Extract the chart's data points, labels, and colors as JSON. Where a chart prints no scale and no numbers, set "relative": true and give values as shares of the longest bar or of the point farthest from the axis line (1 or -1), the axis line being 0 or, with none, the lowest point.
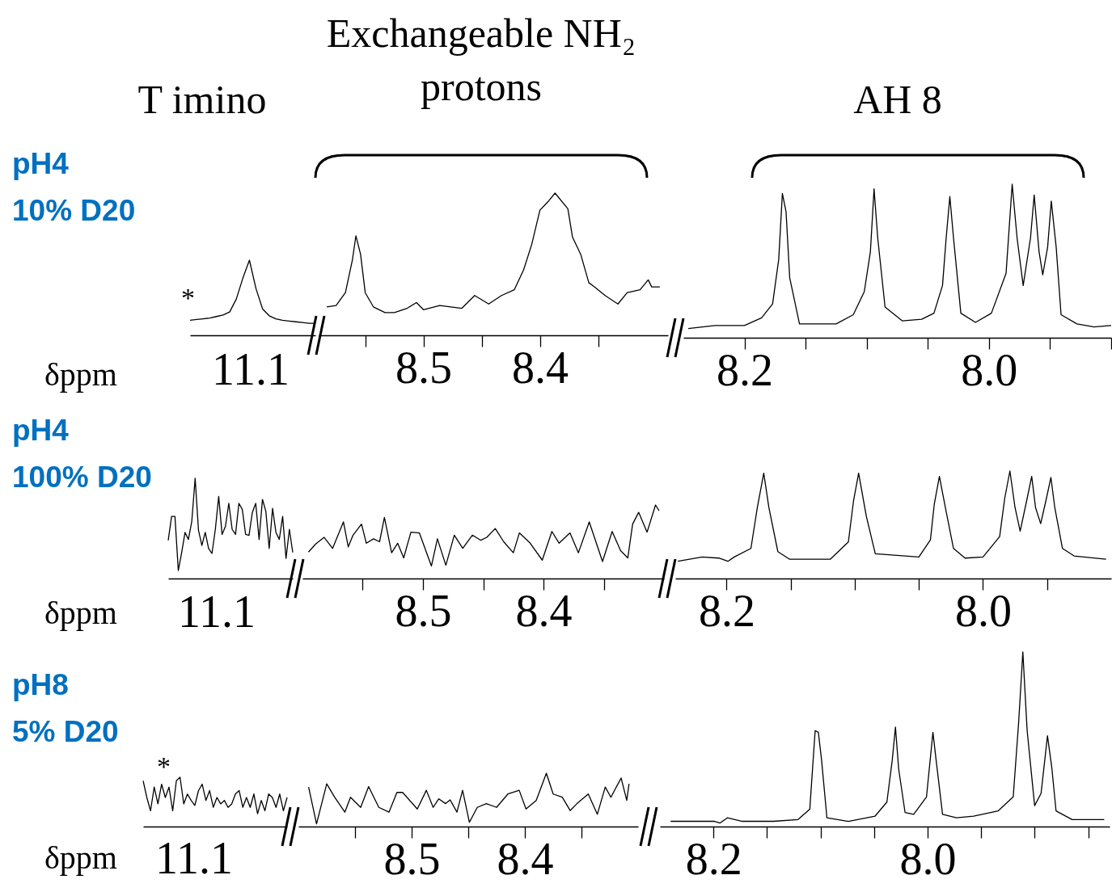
{
  "chart_data": [
    {
      "type": "line",
      "title": "T imino",
      "xlabel": "δppm",
      "relative": true,
      "annotations": [
        "pH4",
        "10% D20",
        "11.1",
        "*"
      ],
      "categories": [
        null,
        null,
        null,
        null,
        null,
        null,
        null,
        null,
        null,
        null,
        null,
        null,
        null,
        null,
        null,
        null,
        null,
        null,
        null,
        null
      ],
      "series": [
        {
          "color": "#000000",
          "values": [
            0.2,
            0.21,
            0.22,
            0.23,
            0.25,
            0.27,
            0.31,
            0.48,
            0.76,
            1,
            0.62,
            0.35,
            0.26,
            0.22,
            0.2,
            0.19,
            0.18,
            0.17,
            0.16,
            0.16
          ]
        }
      ]
    },
    {
      "type": "line",
      "title": "Exchangeable NH₂ protons",
      "relative": true,
      "xlim": [
        8.59,
        8.29
      ],
      "xticks": [
        {
          "value": 8.55,
          "label": null
        },
        8.5,
        {
          "value": 8.45,
          "label": null
        },
        8.4,
        {
          "value": 8.35,
          "label": null
        }
      ],
      "x": [
        8.583,
        8.575,
        8.567,
        8.561,
        8.558,
        8.554,
        8.55,
        8.543,
        8.533,
        8.525,
        8.514,
        8.506,
        8.5,
        8.486,
        8.467,
        8.456,
        8.444,
        8.433,
        8.422,
        8.414,
        8.407,
        8.4,
        8.393,
        8.387,
        8.376,
        8.372,
        8.365,
        8.358,
        8.353,
        8.344,
        8.333,
        8.325,
        8.314,
        8.307,
        8.304,
        8.297
      ],
      "series": [
        {
          "color": "#000000",
          "values": [
            0.2,
            0.21,
            0.3,
            0.53,
            0.7,
            0.57,
            0.3,
            0.2,
            0.16,
            0.16,
            0.19,
            0.23,
            0.18,
            0.21,
            0.19,
            0.28,
            0.22,
            0.28,
            0.32,
            0.46,
            0.64,
            0.88,
            0.94,
            1,
            0.89,
            0.69,
            0.57,
            0.37,
            0.34,
            0.28,
            0.22,
            0.3,
            0.32,
            0.39,
            0.34,
            0.34
          ]
        }
      ]
    },
    {
      "type": "line",
      "title": "AH 8",
      "relative": true,
      "xlim": [
        8.25,
        7.9
      ],
      "xticks": [
        8.2,
        {
          "value": 8.15,
          "label": null
        },
        {
          "value": 8.1,
          "label": null
        },
        {
          "value": 8.05,
          "label": null
        },
        {
          "value": 8,
          "label": "8.0"
        },
        {
          "value": 7.95,
          "label": null
        },
        {
          "value": 7.9,
          "label": null
        }
      ],
      "x": [
        8.246,
        8.224,
        8.2,
        8.186,
        8.177,
        8.172,
        8.169,
        8.166,
        8.163,
        8.155,
        8.125,
        8.111,
        8.102,
        8.097,
        8.094,
        8.091,
        8.085,
        8.071,
        8.055,
        8.045,
        8.038,
        8.035,
        8.032,
        8.029,
        8.023,
        8.011,
        7.998,
        7.986,
        7.981,
        7.977,
        7.972,
        7.966,
        7.963,
        7.959,
        7.956,
        7.952,
        7.949,
        7.945,
        7.941,
        7.928,
        7.914,
        7.9
      ],
      "series": [
        {
          "color": "#000000",
          "values": [
            0.06,
            0.08,
            0.08,
            0.13,
            0.22,
            0.51,
            0.94,
            0.82,
            0.39,
            0.09,
            0.09,
            0.15,
            0.3,
            0.56,
            0.97,
            0.65,
            0.2,
            0.11,
            0.12,
            0.16,
            0.34,
            0.65,
            0.92,
            0.65,
            0.16,
            0.1,
            0.16,
            0.42,
            1,
            0.65,
            0.34,
            0.65,
            0.93,
            0.56,
            0.41,
            0.59,
            0.89,
            0.59,
            0.15,
            0.09,
            0.07,
            0.08
          ]
        }
      ]
    },
    {
      "type": "line",
      "xlabel": "δppm",
      "relative": true,
      "annotations": [
        "pH4",
        "100% D20",
        "11.1"
      ],
      "categories": [
        null,
        null,
        null,
        null,
        null,
        null,
        null,
        null,
        null,
        null,
        null,
        null,
        null,
        null,
        null,
        null,
        null,
        null,
        null,
        null,
        null,
        null,
        null,
        null,
        null,
        null,
        null,
        null,
        null,
        null,
        null,
        null,
        null,
        null,
        null,
        null,
        null,
        null
      ],
      "series": [
        {
          "color": "#000000",
          "values": [
            0.38,
            0.62,
            0.62,
            0.08,
            0.26,
            0.46,
            0.39,
            0.57,
            1,
            0.48,
            0.33,
            0.46,
            0.3,
            0.25,
            0.49,
            0.82,
            0.44,
            0.52,
            0.75,
            0.49,
            0.44,
            0.75,
            0.69,
            0.44,
            0.43,
            0.66,
            0.75,
            0.39,
            0.79,
            0.67,
            0.3,
            0.7,
            0.46,
            0.39,
            0.62,
            0.2,
            0.49,
            0.26
          ]
        }
      ]
    },
    {
      "type": "line",
      "relative": true,
      "xlim": [
        8.6,
        8.3
      ],
      "xticks": [
        {
          "value": 8.55,
          "label": null
        },
        8.5,
        {
          "value": 8.45,
          "label": null
        },
        8.4,
        {
          "value": 8.35,
          "label": null
        }
      ],
      "x": [
        8.595,
        8.589,
        8.582,
        8.575,
        8.566,
        8.562,
        8.558,
        8.551,
        8.547,
        8.541,
        8.536,
        8.532,
        8.526,
        8.521,
        8.516,
        8.51,
        8.503,
        8.493,
        8.488,
        8.481,
        8.474,
        8.467,
        8.459,
        8.452,
        8.447,
        8.44,
        8.433,
        8.425,
        8.42,
        8.411,
        8.401,
        8.393,
        8.387,
        8.378,
        8.371,
        8.362,
        8.351,
        8.343,
        8.336,
        8.33,
        8.326,
        8.321,
        8.314,
        8.307,
        8.304
      ],
      "series": [
        {
          "color": "#000000",
          "values": [
            0.36,
            0.47,
            0.56,
            0.41,
            0.77,
            0.43,
            0.59,
            0.74,
            0.48,
            0.54,
            0.5,
            0.83,
            0.35,
            0.48,
            0.28,
            0.63,
            0.62,
            0.17,
            0.54,
            0.18,
            0.59,
            0.41,
            0.59,
            0.52,
            0.56,
            0.68,
            0.5,
            0.35,
            0.62,
            0.48,
            0.25,
            0.64,
            0.48,
            0.62,
            0.35,
            0.77,
            0.23,
            0.64,
            0.38,
            0.28,
            0.74,
            0.9,
            0.63,
            1,
            0.92
          ]
        }
      ]
    },
    {
      "type": "line",
      "relative": true,
      "xlim": [
        8.24,
        7.9
      ],
      "xticks": [
        8.2,
        {
          "value": 8.15,
          "label": null
        },
        {
          "value": 8.1,
          "label": null
        },
        {
          "value": 8.05,
          "label": null
        },
        {
          "value": 8,
          "label": "8.0"
        },
        {
          "value": 7.95,
          "label": null
        }
      ],
      "x": [
        8.238,
        8.219,
        8.206,
        8.199,
        8.194,
        8.181,
        8.176,
        8.171,
        8.167,
        8.16,
        8.151,
        8.119,
        8.105,
        8.101,
        8.097,
        8.091,
        8.084,
        8.05,
        8.041,
        8.038,
        8.034,
        8.029,
        8.023,
        8.014,
        8.0,
        7.987,
        7.983,
        7.979,
        7.975,
        7.971,
        7.966,
        7.962,
        7.959,
        7.955,
        7.951,
        7.947,
        7.944,
        7.938,
        7.929,
        7.904
      ],
      "series": [
        {
          "color": "#000000",
          "values": [
            0.16,
            0.2,
            0.19,
            0.16,
            0.2,
            0.28,
            0.66,
            0.98,
            0.66,
            0.25,
            0.18,
            0.18,
            0.34,
            0.72,
            0.98,
            0.58,
            0.23,
            0.2,
            0.36,
            0.69,
            0.95,
            0.64,
            0.28,
            0.19,
            0.2,
            0.39,
            0.75,
            1,
            0.66,
            0.44,
            0.72,
            0.95,
            0.66,
            0.51,
            0.72,
            0.94,
            0.66,
            0.28,
            0.21,
            0.18
          ]
        }
      ]
    },
    {
      "type": "line",
      "xlabel": "δppm",
      "relative": true,
      "annotations": [
        "pH8",
        "5% D20",
        "11.1",
        "*"
      ],
      "categories": [
        null,
        null,
        null,
        null,
        null,
        null,
        null,
        null,
        null,
        null,
        null,
        null,
        null,
        null,
        null,
        null,
        null,
        null,
        null,
        null,
        null,
        null,
        null,
        null,
        null,
        null,
        null,
        null,
        null,
        null,
        null,
        null,
        null,
        null,
        null,
        null,
        null,
        null,
        null,
        null
      ],
      "series": [
        {
          "color": "#000000",
          "values": [
            0.93,
            0.59,
            0.32,
            0.8,
            0.46,
            0.86,
            0.59,
            0.8,
            0.32,
            0.93,
            1,
            0.46,
            0.66,
            0.53,
            0.43,
            0.73,
            0.86,
            0.53,
            0.73,
            0.39,
            0.59,
            0.46,
            0.53,
            0.39,
            0.46,
            0.66,
            0.73,
            0.39,
            0.59,
            0.39,
            0.66,
            0.26,
            0.53,
            0.32,
            0.66,
            0.59,
            0.39,
            0.66,
            0.32,
            0.59
          ]
        }
      ]
    },
    {
      "type": "line",
      "relative": true,
      "xlim": [
        8.6,
        8.3
      ],
      "xticks": [
        {
          "value": 8.55,
          "label": null
        },
        8.5,
        {
          "value": 8.45,
          "label": null
        },
        8.4,
        {
          "value": 8.35,
          "label": null
        }
      ],
      "x": [
        8.591,
        8.584,
        8.575,
        8.568,
        8.559,
        8.554,
        8.545,
        8.538,
        8.529,
        8.52,
        8.513,
        8.508,
        8.495,
        8.487,
        8.481,
        8.476,
        8.47,
        8.466,
        8.46,
        8.455,
        8.449,
        8.442,
        8.434,
        8.425,
        8.415,
        8.405,
        8.399,
        8.39,
        8.381,
        8.375,
        8.367,
        8.36,
        8.354,
        8.344,
        8.336,
        8.329,
        8.324,
        8.315,
        8.31,
        8.308
      ],
      "series": [
        {
          "color": "#000000",
          "values": [
            0.74,
            0.05,
            0.8,
            0.55,
            0.27,
            0.55,
            0.36,
            0.75,
            0.36,
            0.27,
            0.64,
            0.64,
            0.33,
            0.68,
            0.36,
            0.52,
            0.43,
            0.5,
            0.27,
            0.68,
            0.08,
            0.36,
            0.43,
            0.36,
            0.61,
            0.68,
            0.33,
            0.49,
            1,
            0.61,
            0.55,
            0.3,
            0.43,
            0.61,
            0.23,
            0.74,
            0.55,
            0.91,
            0.49,
            0.8
          ]
        }
      ]
    },
    {
      "type": "line",
      "relative": true,
      "xlim": [
        8.25,
        7.83
      ],
      "xticks": [
        8.2,
        {
          "value": 8.15,
          "label": null
        },
        {
          "value": 8.1,
          "label": null
        },
        {
          "value": 8.05,
          "label": null
        },
        {
          "value": 8,
          "label": "8.0"
        },
        {
          "value": 7.95,
          "label": null
        },
        {
          "value": 7.9,
          "label": null
        },
        {
          "value": 7.85,
          "label": null
        }
      ],
      "x": [
        8.24,
        8.199,
        8.194,
        8.187,
        8.173,
        8.144,
        8.121,
        8.11,
        8.105,
        8.102,
        8.099,
        8.094,
        8.074,
        8.049,
        8.038,
        8.033,
        8.03,
        8.027,
        8.021,
        8.013,
        8.001,
        7.995,
        7.992,
        7.986,
        7.973,
        7.957,
        7.934,
        7.92,
        7.915,
        7.911,
        7.907,
        7.9,
        7.894,
        7.888,
        7.884,
        7.88,
        7.865,
        7.835
      ],
      "series": [
        {
          "color": "#000000",
          "values": [
            0.03,
            0.03,
            0.02,
            0.05,
            0.03,
            0.03,
            0.04,
            0.1,
            0.55,
            0.54,
            0.38,
            0.05,
            0.03,
            0.06,
            0.14,
            0.38,
            0.57,
            0.33,
            0.08,
            0.07,
            0.17,
            0.54,
            0.38,
            0.07,
            0.05,
            0.06,
            0.09,
            0.17,
            0.59,
            1,
            0.55,
            0.12,
            0.19,
            0.52,
            0.34,
            0.09,
            0.04,
            0.04
          ]
        }
      ]
    }
  ]
}
